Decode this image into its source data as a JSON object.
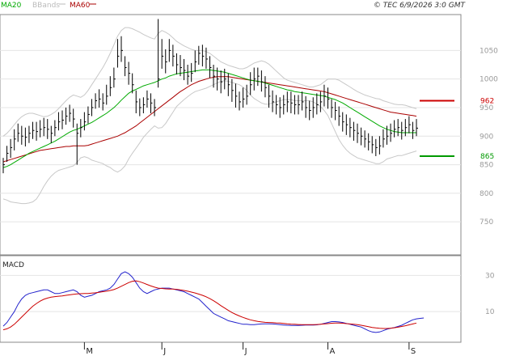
{
  "legend": {
    "items": [
      {
        "label": "MA20",
        "color": "#00aa00"
      },
      {
        "label": "BBands",
        "color": "#bbbbbb"
      },
      {
        "label": "MA60",
        "color": "#aa0000"
      }
    ]
  },
  "copyright": "© TEC 6/9/2026 3:0 GMT",
  "chart_data": [
    {
      "type": "line",
      "title": "",
      "price_type": "ohlc-bars",
      "y_ticks": [
        750,
        800,
        850,
        900,
        950,
        1000,
        1050
      ],
      "ylim": [
        695,
        1110
      ],
      "x_months": [
        {
          "label": "M",
          "index": 22
        },
        {
          "label": "J",
          "index": 43
        },
        {
          "label": "J",
          "index": 65
        },
        {
          "label": "A",
          "index": 88
        },
        {
          "label": "S",
          "index": 110
        }
      ],
      "x": [
        0,
        1,
        2,
        3,
        4,
        5,
        6,
        7,
        8,
        9,
        10,
        11,
        12,
        13,
        14,
        15,
        16,
        17,
        18,
        19,
        20,
        21,
        22,
        23,
        24,
        25,
        26,
        27,
        28,
        29,
        30,
        31,
        32,
        33,
        34,
        35,
        36,
        37,
        38,
        39,
        40,
        41,
        42,
        43,
        44,
        45,
        46,
        47,
        48,
        49,
        50,
        51,
        52,
        53,
        54,
        55,
        56,
        57,
        58,
        59,
        60,
        61,
        62,
        63,
        64,
        65,
        66,
        67,
        68,
        69,
        70,
        71,
        72,
        73,
        74,
        75,
        76,
        77,
        78,
        79,
        80,
        81,
        82,
        83,
        84,
        85,
        86,
        87,
        88,
        89,
        90,
        91,
        92,
        93,
        94,
        95,
        96,
        97,
        98,
        99,
        100,
        101,
        102,
        103,
        104,
        105,
        106,
        107,
        108,
        109,
        110,
        111,
        112
      ],
      "close": [
        850,
        870,
        880,
        895,
        905,
        900,
        898,
        905,
        910,
        908,
        912,
        915,
        912,
        905,
        915,
        925,
        928,
        935,
        940,
        930,
        905,
        915,
        925,
        938,
        950,
        962,
        965,
        958,
        970,
        985,
        1000,
        1040,
        1050,
        1020,
        1010,
        990,
        960,
        950,
        955,
        965,
        958,
        950,
        1000,
        1040,
        1030,
        1050,
        1040,
        1025,
        1020,
        1015,
        1005,
        1010,
        1030,
        1045,
        1040,
        1035,
        1020,
        1005,
        1000,
        995,
        1000,
        990,
        980,
        970,
        960,
        965,
        970,
        990,
        1000,
        1005,
        995,
        985,
        970,
        960,
        955,
        950,
        955,
        960,
        958,
        955,
        955,
        960,
        950,
        945,
        950,
        955,
        960,
        970,
        965,
        950,
        945,
        935,
        925,
        920,
        915,
        910,
        905,
        900,
        895,
        890,
        885,
        880,
        883,
        895,
        900,
        905,
        912,
        915,
        910,
        915,
        920,
        910,
        914
      ],
      "high": [
        862,
        883,
        895,
        912,
        922,
        918,
        915,
        918,
        925,
        925,
        928,
        932,
        930,
        918,
        928,
        942,
        945,
        950,
        955,
        948,
        922,
        930,
        942,
        952,
        965,
        975,
        982,
        975,
        990,
        1005,
        1020,
        1070,
        1075,
        1040,
        1030,
        1010,
        980,
        966,
        968,
        980,
        975,
        965,
        1105,
        1070,
        1052,
        1070,
        1060,
        1045,
        1042,
        1035,
        1025,
        1028,
        1050,
        1058,
        1060,
        1055,
        1040,
        1025,
        1020,
        1015,
        1018,
        1010,
        1000,
        992,
        978,
        985,
        990,
        1012,
        1020,
        1020,
        1015,
        1005,
        990,
        980,
        972,
        968,
        972,
        978,
        978,
        972,
        972,
        978,
        970,
        962,
        968,
        975,
        978,
        990,
        985,
        965,
        960,
        952,
        942,
        938,
        932,
        925,
        922,
        915,
        910,
        905,
        900,
        895,
        900,
        912,
        918,
        922,
        928,
        930,
        925,
        930,
        935,
        925,
        930
      ],
      "low": [
        835,
        855,
        862,
        875,
        890,
        885,
        882,
        888,
        895,
        892,
        898,
        900,
        895,
        888,
        900,
        910,
        912,
        920,
        925,
        915,
        850,
        898,
        910,
        922,
        935,
        948,
        950,
        945,
        955,
        970,
        985,
        1020,
        1030,
        1005,
        990,
        975,
        940,
        935,
        940,
        950,
        940,
        935,
        985,
        1018,
        1010,
        1030,
        1022,
        1008,
        1005,
        998,
        990,
        995,
        1012,
        1025,
        1022,
        1018,
        1002,
        985,
        980,
        975,
        982,
        970,
        960,
        950,
        945,
        950,
        955,
        972,
        980,
        988,
        978,
        968,
        950,
        942,
        938,
        932,
        938,
        942,
        940,
        938,
        938,
        945,
        932,
        928,
        932,
        938,
        942,
        952,
        948,
        932,
        928,
        918,
        908,
        902,
        898,
        892,
        888,
        884,
        880,
        875,
        870,
        865,
        868,
        880,
        885,
        890,
        898,
        900,
        894,
        900,
        905,
        895,
        900
      ],
      "ma20": [
        845,
        847,
        850,
        854,
        858,
        862,
        866,
        870,
        873,
        876,
        879,
        882,
        885,
        888,
        891,
        895,
        899,
        903,
        907,
        910,
        912,
        915,
        918,
        921,
        924,
        928,
        932,
        936,
        940,
        945,
        950,
        956,
        963,
        969,
        975,
        979,
        982,
        985,
        988,
        990,
        992,
        994,
        997,
        1000,
        1002,
        1005,
        1007,
        1009,
        1010,
        1011,
        1012,
        1013,
        1014,
        1015,
        1016,
        1016,
        1016,
        1015,
        1014,
        1013,
        1012,
        1010,
        1008,
        1006,
        1004,
        1002,
        1000,
        998,
        997,
        996,
        995,
        993,
        991,
        989,
        987,
        985,
        983,
        981,
        980,
        978,
        977,
        976,
        975,
        974,
        973,
        972,
        971,
        970,
        968,
        966,
        964,
        961,
        958,
        954,
        950,
        946,
        942,
        938,
        934,
        930,
        926,
        922,
        918,
        915,
        912,
        910,
        908,
        907,
        906,
        906,
        906,
        906,
        906
      ],
      "bb_upper": [
        900,
        905,
        912,
        920,
        928,
        934,
        938,
        940,
        940,
        938,
        936,
        934,
        935,
        938,
        942,
        948,
        955,
        962,
        968,
        972,
        970,
        968,
        972,
        980,
        990,
        1000,
        1010,
        1020,
        1032,
        1045,
        1060,
        1075,
        1085,
        1090,
        1090,
        1088,
        1085,
        1082,
        1078,
        1075,
        1072,
        1070,
        1080,
        1085,
        1082,
        1078,
        1072,
        1066,
        1062,
        1058,
        1055,
        1052,
        1050,
        1050,
        1050,
        1048,
        1045,
        1040,
        1035,
        1030,
        1027,
        1024,
        1022,
        1020,
        1018,
        1018,
        1020,
        1024,
        1028,
        1030,
        1032,
        1030,
        1026,
        1020,
        1014,
        1008,
        1002,
        998,
        996,
        994,
        992,
        990,
        988,
        986,
        986,
        988,
        990,
        995,
        1000,
        1000,
        1000,
        998,
        994,
        990,
        986,
        982,
        978,
        975,
        972,
        970,
        968,
        966,
        965,
        962,
        960,
        958,
        956,
        955,
        955,
        954,
        952,
        950,
        948
      ],
      "bb_lower": [
        790,
        788,
        785,
        784,
        783,
        782,
        782,
        783,
        785,
        790,
        800,
        812,
        822,
        830,
        836,
        840,
        842,
        844,
        846,
        848,
        854,
        862,
        864,
        862,
        858,
        856,
        854,
        852,
        848,
        845,
        840,
        837,
        841,
        848,
        860,
        870,
        879,
        888,
        898,
        905,
        912,
        918,
        914,
        915,
        922,
        932,
        942,
        952,
        958,
        964,
        969,
        974,
        978,
        980,
        982,
        984,
        987,
        990,
        993,
        996,
        997,
        996,
        994,
        992,
        990,
        986,
        980,
        972,
        966,
        962,
        958,
        956,
        956,
        958,
        960,
        962,
        964,
        964,
        964,
        962,
        962,
        962,
        962,
        962,
        960,
        956,
        952,
        945,
        936,
        922,
        908,
        894,
        884,
        876,
        870,
        866,
        862,
        860,
        858,
        856,
        854,
        852,
        852,
        855,
        860,
        862,
        864,
        866,
        866,
        868,
        870,
        872,
        874
      ],
      "ma60": [
        855,
        857,
        859,
        861,
        863,
        865,
        867,
        869,
        871,
        873,
        875,
        876,
        877,
        878,
        879,
        880,
        881,
        882,
        882,
        883,
        883,
        883,
        883,
        884,
        886,
        888,
        890,
        892,
        894,
        896,
        898,
        900,
        903,
        906,
        910,
        914,
        918,
        923,
        928,
        933,
        938,
        943,
        948,
        953,
        958,
        963,
        968,
        973,
        978,
        982,
        986,
        990,
        993,
        996,
        998,
        1000,
        1002,
        1003,
        1004,
        1004,
        1004,
        1004,
        1003,
        1002,
        1001,
        1000,
        999,
        998,
        997,
        996,
        995,
        994,
        993,
        992,
        991,
        990,
        989,
        988,
        987,
        986,
        985,
        984,
        983,
        982,
        981,
        980,
        979,
        978,
        976,
        974,
        972,
        970,
        968,
        966,
        964,
        962,
        960,
        958,
        956,
        954,
        952,
        950,
        948,
        946,
        944,
        942,
        941,
        940,
        939,
        938,
        937,
        936,
        935
      ]
    },
    {
      "type": "line",
      "title": "MACD",
      "y_ticks": [
        10,
        30
      ],
      "ylim": [
        -6,
        40
      ],
      "series": [
        {
          "name": "",
          "color": "#2222cc",
          "values": [
            2,
            4,
            7,
            10,
            14,
            17,
            19,
            20,
            20.5,
            21,
            21.5,
            22,
            22,
            21,
            20,
            20,
            20.5,
            21,
            21.5,
            22,
            21,
            19,
            18,
            18.5,
            19,
            20,
            21,
            21.5,
            22,
            23,
            25,
            28,
            31,
            32,
            31,
            29,
            26,
            23,
            21,
            20,
            21,
            22,
            22.5,
            23,
            23,
            23,
            22.5,
            22,
            21.5,
            21,
            20,
            19,
            18,
            17,
            15,
            13,
            11,
            9,
            8,
            7,
            6,
            5,
            4.5,
            4,
            3.5,
            3,
            3,
            2.8,
            2.8,
            3,
            3.2,
            3.3,
            3.3,
            3.2,
            3,
            2.8,
            2.6,
            2.5,
            2.4,
            2.4,
            2.4,
            2.5,
            2.6,
            2.6,
            2.6,
            2.7,
            3,
            3.5,
            4,
            4.5,
            4.5,
            4.3,
            4,
            3.5,
            3,
            2.5,
            2,
            1.5,
            0.5,
            -0.5,
            -1.2,
            -1.5,
            -1.2,
            -0.5,
            0.3,
            0.8,
            1.2,
            1.8,
            2.5,
            3.5,
            4.5,
            5.5,
            6,
            6.3,
            6.5
          ]
        },
        {
          "name": "",
          "color": "#cc0000",
          "values": [
            0,
            0.5,
            1.5,
            3,
            5,
            7,
            9,
            11,
            13,
            14.5,
            15.8,
            16.8,
            17.5,
            18,
            18.3,
            18.5,
            18.7,
            19,
            19.3,
            19.6,
            19.8,
            19.9,
            20,
            20,
            20.2,
            20.4,
            20.7,
            21,
            21.3,
            21.7,
            22.2,
            23,
            24,
            25,
            26,
            26.8,
            27,
            26.5,
            25.8,
            25,
            24.2,
            23.5,
            23,
            22.8,
            22.6,
            22.5,
            22.5,
            22.3,
            22,
            21.7,
            21.3,
            20.8,
            20.3,
            19.7,
            19,
            18.2,
            17.2,
            16,
            14.7,
            13.3,
            12,
            10.7,
            9.5,
            8.5,
            7.6,
            6.8,
            6.1,
            5.5,
            5,
            4.6,
            4.3,
            4.1,
            4,
            3.9,
            3.8,
            3.7,
            3.5,
            3.3,
            3.1,
            3,
            2.9,
            2.8,
            2.8,
            2.8,
            2.8,
            2.9,
            3,
            3.2,
            3.4,
            3.6,
            3.7,
            3.7,
            3.6,
            3.4,
            3.2,
            3,
            2.8,
            2.5,
            2.1,
            1.7,
            1.3,
            1,
            0.8,
            0.7,
            0.7,
            0.9,
            1.1,
            1.4,
            1.8,
            2.2,
            2.7,
            3.2,
            3.7
          ]
        }
      ]
    }
  ],
  "levels": [
    {
      "label": "962",
      "value": 962,
      "color": "#cc0000"
    },
    {
      "label": "865",
      "value": 865,
      "color": "#009900"
    }
  ]
}
